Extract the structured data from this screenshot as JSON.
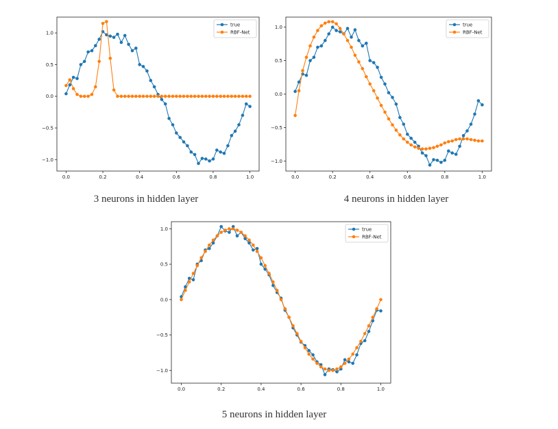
{
  "captions": [
    "3 neurons in hidden layer",
    "4 neurons in hidden layer",
    "5 neurons in hidden layer"
  ],
  "colors": {
    "true": "#1f77b4",
    "rbf": "#ff7f0e"
  },
  "chart_data": [
    {
      "type": "line",
      "xlim": [
        -0.05,
        1.05
      ],
      "ylim": [
        -1.18,
        1.25
      ],
      "xticks": [
        0.0,
        0.2,
        0.4,
        0.6,
        0.8,
        1.0
      ],
      "xticklabels": [
        "0.0",
        "0.2",
        "0.4",
        "0.6",
        "0.8",
        "1.0"
      ],
      "yticks": [
        -1.0,
        -0.5,
        0.0,
        0.5,
        1.0
      ],
      "yticklabels": [
        "−1.0",
        "−0.5",
        "0.0",
        "0.5",
        "1.0"
      ],
      "legend": "top-right",
      "series": [
        {
          "name": "true",
          "x": [
            0.0,
            0.02,
            0.04,
            0.06,
            0.08,
            0.1,
            0.12,
            0.14,
            0.16,
            0.18,
            0.2,
            0.22,
            0.24,
            0.26,
            0.28,
            0.3,
            0.32,
            0.34,
            0.36,
            0.38,
            0.4,
            0.42,
            0.44,
            0.46,
            0.48,
            0.5,
            0.52,
            0.54,
            0.56,
            0.58,
            0.6,
            0.62,
            0.64,
            0.66,
            0.68,
            0.7,
            0.72,
            0.74,
            0.76,
            0.78,
            0.8,
            0.82,
            0.84,
            0.86,
            0.88,
            0.9,
            0.92,
            0.94,
            0.96,
            0.98,
            1.0
          ],
          "y": [
            0.04,
            0.18,
            0.3,
            0.28,
            0.5,
            0.55,
            0.7,
            0.72,
            0.8,
            0.9,
            1.02,
            0.97,
            0.95,
            0.93,
            0.98,
            0.85,
            0.96,
            0.82,
            0.72,
            0.76,
            0.5,
            0.47,
            0.4,
            0.25,
            0.15,
            0.03,
            -0.05,
            -0.12,
            -0.35,
            -0.45,
            -0.58,
            -0.65,
            -0.72,
            -0.78,
            -0.88,
            -0.92,
            -1.06,
            -0.98,
            -0.99,
            -1.02,
            -0.99,
            -0.85,
            -0.88,
            -0.9,
            -0.78,
            -0.62,
            -0.55,
            -0.45,
            -0.3,
            -0.12,
            -0.16
          ]
        },
        {
          "name": "RBF-Net",
          "x": [
            0.0,
            0.02,
            0.04,
            0.06,
            0.08,
            0.1,
            0.12,
            0.14,
            0.16,
            0.18,
            0.2,
            0.22,
            0.24,
            0.26,
            0.28,
            0.3,
            0.32,
            0.34,
            0.36,
            0.38,
            0.4,
            0.42,
            0.44,
            0.46,
            0.48,
            0.5,
            0.52,
            0.54,
            0.56,
            0.58,
            0.6,
            0.62,
            0.64,
            0.66,
            0.68,
            0.7,
            0.72,
            0.74,
            0.76,
            0.78,
            0.8,
            0.82,
            0.84,
            0.86,
            0.88,
            0.9,
            0.92,
            0.94,
            0.96,
            0.98,
            1.0
          ],
          "y": [
            0.17,
            0.26,
            0.12,
            0.03,
            0.0,
            0.0,
            0.0,
            0.03,
            0.15,
            0.55,
            1.15,
            1.18,
            0.6,
            0.1,
            0.0,
            0.0,
            0.0,
            0.0,
            0.0,
            0.0,
            0.0,
            0.0,
            0.0,
            0.0,
            0.0,
            0.0,
            0.0,
            0.0,
            0.0,
            0.0,
            0.0,
            0.0,
            0.0,
            0.0,
            0.0,
            0.0,
            0.0,
            0.0,
            0.0,
            0.0,
            0.0,
            0.0,
            0.0,
            0.0,
            0.0,
            0.0,
            0.0,
            0.0,
            0.0,
            0.0,
            0.0
          ]
        }
      ]
    },
    {
      "type": "line",
      "xlim": [
        -0.05,
        1.05
      ],
      "ylim": [
        -1.15,
        1.15
      ],
      "xticks": [
        0.0,
        0.2,
        0.4,
        0.6,
        0.8,
        1.0
      ],
      "xticklabels": [
        "0.0",
        "0.2",
        "0.4",
        "0.6",
        "0.8",
        "1.0"
      ],
      "yticks": [
        -1.0,
        -0.5,
        0.0,
        0.5,
        1.0
      ],
      "yticklabels": [
        "−1.0",
        "−0.5",
        "0.0",
        "0.5",
        "1.0"
      ],
      "legend": "top-right",
      "series": [
        {
          "name": "true",
          "x": [
            0.0,
            0.02,
            0.04,
            0.06,
            0.08,
            0.1,
            0.12,
            0.14,
            0.16,
            0.18,
            0.2,
            0.22,
            0.24,
            0.26,
            0.28,
            0.3,
            0.32,
            0.34,
            0.36,
            0.38,
            0.4,
            0.42,
            0.44,
            0.46,
            0.48,
            0.5,
            0.52,
            0.54,
            0.56,
            0.58,
            0.6,
            0.62,
            0.64,
            0.66,
            0.68,
            0.7,
            0.72,
            0.74,
            0.76,
            0.78,
            0.8,
            0.82,
            0.84,
            0.86,
            0.88,
            0.9,
            0.92,
            0.94,
            0.96,
            0.98,
            1.0
          ],
          "y": [
            0.04,
            0.18,
            0.3,
            0.28,
            0.5,
            0.55,
            0.7,
            0.72,
            0.8,
            0.9,
            1.0,
            0.95,
            0.93,
            0.9,
            0.98,
            0.85,
            0.96,
            0.8,
            0.72,
            0.76,
            0.5,
            0.47,
            0.4,
            0.25,
            0.15,
            0.02,
            -0.05,
            -0.15,
            -0.35,
            -0.45,
            -0.6,
            -0.66,
            -0.72,
            -0.78,
            -0.88,
            -0.92,
            -1.06,
            -0.98,
            -0.99,
            -1.02,
            -0.99,
            -0.85,
            -0.88,
            -0.9,
            -0.78,
            -0.62,
            -0.55,
            -0.45,
            -0.3,
            -0.1,
            -0.16
          ]
        },
        {
          "name": "RBF-Net",
          "x": [
            0.0,
            0.02,
            0.04,
            0.06,
            0.08,
            0.1,
            0.12,
            0.14,
            0.16,
            0.18,
            0.2,
            0.22,
            0.24,
            0.26,
            0.28,
            0.3,
            0.32,
            0.34,
            0.36,
            0.38,
            0.4,
            0.42,
            0.44,
            0.46,
            0.48,
            0.5,
            0.52,
            0.54,
            0.56,
            0.58,
            0.6,
            0.62,
            0.64,
            0.66,
            0.68,
            0.7,
            0.72,
            0.74,
            0.76,
            0.78,
            0.8,
            0.82,
            0.84,
            0.86,
            0.88,
            0.9,
            0.92,
            0.94,
            0.96,
            0.98,
            1.0
          ],
          "y": [
            -0.32,
            0.05,
            0.35,
            0.55,
            0.72,
            0.85,
            0.95,
            1.02,
            1.06,
            1.08,
            1.08,
            1.05,
            0.98,
            0.9,
            0.8,
            0.7,
            0.58,
            0.48,
            0.38,
            0.26,
            0.15,
            0.05,
            -0.06,
            -0.17,
            -0.27,
            -0.37,
            -0.46,
            -0.54,
            -0.61,
            -0.67,
            -0.72,
            -0.76,
            -0.79,
            -0.81,
            -0.82,
            -0.82,
            -0.81,
            -0.8,
            -0.78,
            -0.76,
            -0.73,
            -0.71,
            -0.7,
            -0.68,
            -0.67,
            -0.67,
            -0.67,
            -0.68,
            -0.69,
            -0.7,
            -0.7
          ]
        }
      ]
    },
    {
      "type": "line",
      "xlim": [
        -0.05,
        1.05
      ],
      "ylim": [
        -1.18,
        1.1
      ],
      "xticks": [
        0.0,
        0.2,
        0.4,
        0.6,
        0.8,
        1.0
      ],
      "xticklabels": [
        "0.0",
        "0.2",
        "0.4",
        "0.6",
        "0.8",
        "1.0"
      ],
      "yticks": [
        -1.0,
        -0.5,
        0.0,
        0.5,
        1.0
      ],
      "yticklabels": [
        "−1.0",
        "−0.5",
        "0.0",
        "0.5",
        "1.0"
      ],
      "legend": "top-right",
      "series": [
        {
          "name": "true",
          "x": [
            0.0,
            0.02,
            0.04,
            0.06,
            0.08,
            0.1,
            0.12,
            0.14,
            0.16,
            0.18,
            0.2,
            0.22,
            0.24,
            0.26,
            0.28,
            0.3,
            0.32,
            0.34,
            0.36,
            0.38,
            0.4,
            0.42,
            0.44,
            0.46,
            0.48,
            0.5,
            0.52,
            0.54,
            0.56,
            0.58,
            0.6,
            0.62,
            0.64,
            0.66,
            0.68,
            0.7,
            0.72,
            0.74,
            0.76,
            0.78,
            0.8,
            0.82,
            0.84,
            0.86,
            0.88,
            0.9,
            0.92,
            0.94,
            0.96,
            0.98,
            1.0
          ],
          "y": [
            0.04,
            0.18,
            0.3,
            0.28,
            0.5,
            0.55,
            0.7,
            0.72,
            0.8,
            0.9,
            1.03,
            0.97,
            0.95,
            1.03,
            0.9,
            0.95,
            0.86,
            0.8,
            0.7,
            0.72,
            0.5,
            0.43,
            0.35,
            0.2,
            0.1,
            0.02,
            -0.15,
            -0.25,
            -0.4,
            -0.5,
            -0.6,
            -0.65,
            -0.72,
            -0.78,
            -0.88,
            -0.92,
            -1.06,
            -0.98,
            -0.99,
            -1.02,
            -0.98,
            -0.85,
            -0.88,
            -0.9,
            -0.78,
            -0.62,
            -0.58,
            -0.45,
            -0.3,
            -0.15,
            -0.16
          ]
        },
        {
          "name": "RBF-Net",
          "x": [
            0.0,
            0.02,
            0.04,
            0.06,
            0.08,
            0.1,
            0.12,
            0.14,
            0.16,
            0.18,
            0.2,
            0.22,
            0.24,
            0.26,
            0.28,
            0.3,
            0.32,
            0.34,
            0.36,
            0.38,
            0.4,
            0.42,
            0.44,
            0.46,
            0.48,
            0.5,
            0.52,
            0.54,
            0.56,
            0.58,
            0.6,
            0.62,
            0.64,
            0.66,
            0.68,
            0.7,
            0.72,
            0.74,
            0.76,
            0.78,
            0.8,
            0.82,
            0.84,
            0.86,
            0.88,
            0.9,
            0.92,
            0.94,
            0.96,
            0.98,
            1.0
          ],
          "y": [
            0.0,
            0.13,
            0.25,
            0.37,
            0.48,
            0.59,
            0.68,
            0.77,
            0.84,
            0.9,
            0.95,
            0.98,
            1.0,
            1.0,
            0.98,
            0.95,
            0.9,
            0.84,
            0.77,
            0.68,
            0.59,
            0.48,
            0.37,
            0.25,
            0.13,
            0.0,
            -0.13,
            -0.25,
            -0.37,
            -0.48,
            -0.59,
            -0.68,
            -0.77,
            -0.84,
            -0.9,
            -0.95,
            -0.98,
            -1.0,
            -1.0,
            -0.98,
            -0.95,
            -0.9,
            -0.84,
            -0.77,
            -0.68,
            -0.59,
            -0.48,
            -0.37,
            -0.25,
            -0.13,
            0.0
          ]
        }
      ]
    }
  ]
}
